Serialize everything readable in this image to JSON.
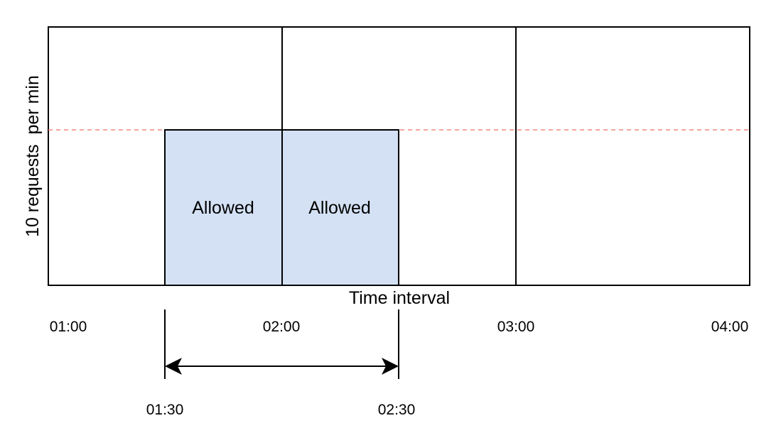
{
  "colors": {
    "outline": "#000000",
    "block_fill": "#d4e1f4",
    "limit_line": "#f08a80",
    "background": "#ffffff"
  },
  "y_axis_label": "10 requests  per min",
  "x_axis_label": "Time interval",
  "time_ticks": [
    "01:00",
    "02:00",
    "03:00",
    "04:00"
  ],
  "window_ticks": [
    "01:30",
    "02:30"
  ],
  "blocks": [
    {
      "label": "Allowed"
    },
    {
      "label": "Allowed"
    }
  ]
}
